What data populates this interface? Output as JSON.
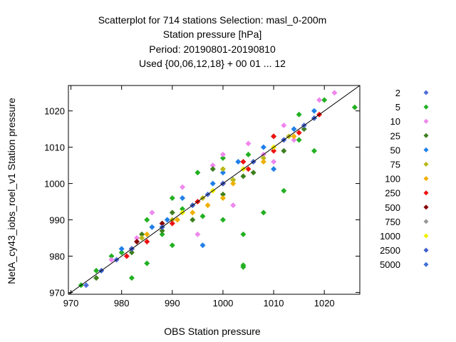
{
  "chart_data": {
    "type": "scatter",
    "title_lines": [
      "Scatterplot for  714 stations Selection: masl_0-200m",
      "Station pressure [hPa]",
      "Period: 20190801-20190810",
      "Used {00,06,12,18} + 00 01 ... 12"
    ],
    "xlabel": "OBS Station pressure",
    "ylabel": "NetA_cy43_iobs_roel_v1 Station pressure",
    "xlim": [
      969.5,
      1027
    ],
    "ylim": [
      969.5,
      1027
    ],
    "x_ticks": [
      970,
      980,
      990,
      1000,
      1010,
      1020
    ],
    "y_ticks": [
      970,
      980,
      990,
      1000,
      1010,
      1020
    ],
    "diagonal": true,
    "legend_position": "right",
    "series": [
      {
        "name": "2",
        "color": "#4f6fd8"
      },
      {
        "name": "5",
        "color": "#22b022"
      },
      {
        "name": "10",
        "color": "#ee88ee"
      },
      {
        "name": "25",
        "color": "#3f7f1f"
      },
      {
        "name": "50",
        "color": "#1f7fe8"
      },
      {
        "name": "75",
        "color": "#b8b81a"
      },
      {
        "name": "100",
        "color": "#f0b000"
      },
      {
        "name": "250",
        "color": "#ee1111"
      },
      {
        "name": "500",
        "color": "#880000"
      },
      {
        "name": "750",
        "color": "#999999"
      },
      {
        "name": "1000",
        "color": "#f0f000"
      },
      {
        "name": "2500",
        "color": "#3f5fc8"
      },
      {
        "name": "5000",
        "color": "#3f6fd8"
      }
    ],
    "point_groups": [
      {
        "series": "5",
        "points": [
          [
            972,
            972
          ],
          [
            975,
            976
          ],
          [
            980,
            981
          ],
          [
            985,
            990
          ],
          [
            990,
            996
          ],
          [
            995,
            1003
          ],
          [
            1000,
            1007
          ],
          [
            1005,
            1008
          ],
          [
            1010,
            1013
          ],
          [
            1015,
            1019
          ],
          [
            1020,
            1023
          ],
          [
            1026,
            1021
          ],
          [
            992,
            993
          ],
          [
            996,
            991
          ],
          [
            1000,
            990
          ],
          [
            1004,
            977
          ],
          [
            1004,
            977.5
          ],
          [
            1004,
            986
          ],
          [
            1008,
            992
          ],
          [
            1012,
            998
          ],
          [
            985,
            978
          ],
          [
            990,
            983
          ],
          [
            1018,
            1009
          ],
          [
            982,
            974
          ],
          [
            1015,
            1012
          ],
          [
            978,
            980
          ],
          [
            1002,
            1001
          ],
          [
            988,
            986
          ]
        ]
      },
      {
        "series": "10",
        "points": [
          [
            978,
            979
          ],
          [
            986,
            992
          ],
          [
            992,
            999
          ],
          [
            998,
            1005
          ],
          [
            1005,
            1011
          ],
          [
            1012,
            1016
          ],
          [
            1019,
            1023
          ],
          [
            1022,
            1025
          ],
          [
            1008,
            1008
          ],
          [
            1014,
            1012
          ],
          [
            983,
            985
          ],
          [
            995,
            986
          ],
          [
            1002,
            994
          ],
          [
            1010,
            1006
          ],
          [
            1000,
            1008
          ]
        ]
      },
      {
        "series": "25",
        "points": [
          [
            975,
            974
          ],
          [
            982,
            981
          ],
          [
            988,
            987
          ],
          [
            994,
            990
          ],
          [
            1000,
            997
          ],
          [
            1006,
            1003
          ],
          [
            1012,
            1009
          ],
          [
            1016,
            1015
          ],
          [
            990,
            992
          ],
          [
            984,
            986
          ],
          [
            998,
            1004
          ],
          [
            1004,
            1002
          ]
        ]
      },
      {
        "series": "50",
        "points": [
          [
            980,
            982
          ],
          [
            986,
            988
          ],
          [
            992,
            996
          ],
          [
            998,
            1000
          ],
          [
            1003,
            1006
          ],
          [
            1008,
            1010
          ],
          [
            1014,
            1015
          ],
          [
            1018,
            1020
          ],
          [
            996,
            983
          ],
          [
            1000,
            1003
          ],
          [
            1010,
            1004
          ],
          [
            989,
            990
          ]
        ]
      },
      {
        "series": "75",
        "points": [
          [
            984,
            985
          ],
          [
            990,
            990
          ],
          [
            996,
            996
          ],
          [
            1002,
            1001
          ],
          [
            1008,
            1007
          ],
          [
            1013,
            1013
          ],
          [
            1000,
            1004
          ]
        ]
      },
      {
        "series": "100",
        "points": [
          [
            985,
            986
          ],
          [
            991,
            990
          ],
          [
            997,
            994
          ],
          [
            1002,
            1000
          ],
          [
            1008,
            1006
          ],
          [
            1014,
            1013
          ],
          [
            994,
            992
          ],
          [
            1000,
            996
          ]
        ]
      },
      {
        "series": "250",
        "points": [
          [
            981,
            980
          ],
          [
            985,
            984
          ],
          [
            990,
            989
          ],
          [
            995,
            995
          ],
          [
            1000,
            1000
          ],
          [
            1005,
            1004
          ],
          [
            1010,
            1009
          ],
          [
            1015,
            1014
          ],
          [
            1019,
            1019
          ],
          [
            1004,
            1006
          ],
          [
            1010,
            1013
          ]
        ]
      },
      {
        "series": "500",
        "points": [
          [
            983,
            984
          ],
          [
            988,
            989
          ],
          [
            982,
            982
          ]
        ]
      },
      {
        "series": "1000",
        "points": [
          [
            992,
            992
          ],
          [
            998,
            998
          ],
          [
            1004,
            1004
          ],
          [
            1010,
            1010
          ]
        ]
      },
      {
        "series": "2500",
        "points": [
          [
            976,
            976
          ],
          [
            982,
            982
          ],
          [
            988,
            988
          ],
          [
            994,
            994
          ],
          [
            1000,
            1000
          ],
          [
            1006,
            1006
          ],
          [
            1012,
            1012
          ],
          [
            1018,
            1018
          ]
        ]
      },
      {
        "series": "2",
        "points": [
          [
            973,
            972
          ],
          [
            979,
            979
          ],
          [
            997,
            997
          ],
          [
            1016,
            1016
          ]
        ]
      }
    ]
  }
}
